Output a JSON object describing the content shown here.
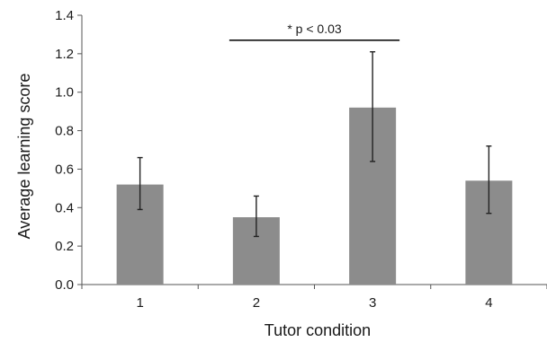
{
  "chart_data": {
    "type": "bar",
    "xlabel": "Tutor condition",
    "ylabel": "Average learning score",
    "categories": [
      "1",
      "2",
      "3",
      "4"
    ],
    "values": [
      0.52,
      0.35,
      0.92,
      0.54
    ],
    "error_bars": {
      "lower": [
        0.39,
        0.25,
        0.64,
        0.37
      ],
      "upper": [
        0.66,
        0.46,
        1.21,
        0.72
      ]
    },
    "ylim": [
      0.0,
      1.4
    ],
    "yticks": [
      "0.0",
      "0.2",
      "0.4",
      "0.6",
      "0.8",
      "1.0",
      "1.2",
      "1.4"
    ],
    "grid": false,
    "bar_color": "#8c8c8c",
    "annotation": {
      "text": "* p < 0.03",
      "from_category": "2",
      "to_category": "3",
      "y": 1.27
    }
  }
}
